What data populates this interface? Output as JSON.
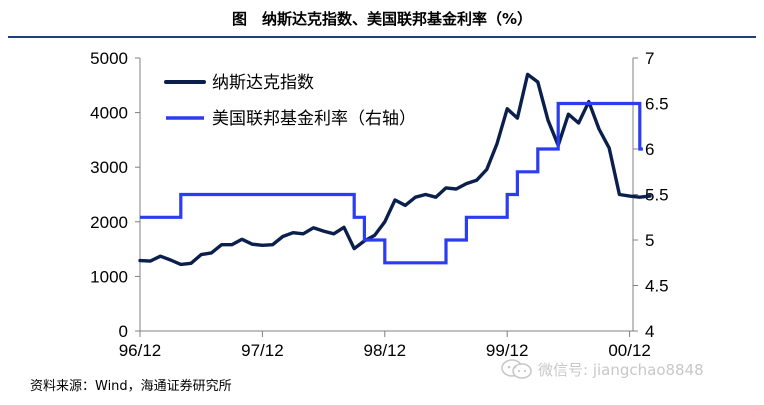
{
  "figure": {
    "title": "图　纳斯达克指数、美国联邦基金利率（%）",
    "source": "资料来源：Wind，海通证券研究所",
    "watermark": "微信号: jiangchao8848"
  },
  "chart_data": {
    "type": "line",
    "title": "纳斯达克指数、美国联邦基金利率（%）",
    "x_tick_labels": [
      "96/12",
      "97/12",
      "98/12",
      "99/12",
      "00/12"
    ],
    "y_left": {
      "ticks": [
        0,
        1000,
        2000,
        3000,
        4000,
        5000
      ],
      "range": [
        0,
        5000
      ]
    },
    "y_right": {
      "ticks": [
        "4",
        "4.5",
        "5",
        "5.5",
        "6",
        "6.5",
        "7"
      ],
      "range": [
        4,
        7
      ]
    },
    "grid": false,
    "legend_position": "top-left",
    "series": [
      {
        "name": "纳斯达克指数",
        "axis": "left",
        "color": "#0b1f4d",
        "x_months": [
          0,
          1,
          2,
          3,
          4,
          5,
          6,
          7,
          8,
          9,
          10,
          11,
          12,
          13,
          14,
          15,
          16,
          17,
          18,
          19,
          20,
          21,
          22,
          23,
          24,
          25,
          26,
          27,
          28,
          29,
          30,
          31,
          32,
          33,
          34,
          35,
          36,
          37,
          38,
          39,
          40,
          41,
          42,
          43,
          44,
          45,
          46,
          47,
          48,
          49,
          50
        ],
        "values": [
          1290,
          1280,
          1370,
          1300,
          1220,
          1240,
          1400,
          1430,
          1580,
          1580,
          1680,
          1590,
          1570,
          1580,
          1730,
          1800,
          1780,
          1890,
          1830,
          1780,
          1900,
          1510,
          1650,
          1750,
          2000,
          2400,
          2300,
          2450,
          2500,
          2450,
          2620,
          2600,
          2700,
          2760,
          2960,
          3430,
          4070,
          3900,
          4700,
          4560,
          3860,
          3400,
          3970,
          3810,
          4200,
          3700,
          3350,
          2500,
          2470,
          2450,
          2470
        ],
        "ylim": [
          0,
          5000
        ]
      },
      {
        "name": "美国联邦基金利率（右轴）",
        "axis": "right",
        "color": "#2b3df0",
        "x_months": [
          0,
          4,
          4,
          21,
          21,
          22,
          22,
          24,
          24,
          30,
          30,
          32,
          32,
          36,
          36,
          37,
          37,
          39,
          39,
          41,
          41,
          42,
          42,
          49,
          49,
          49.3
        ],
        "values": [
          5.25,
          5.25,
          5.5,
          5.5,
          5.25,
          5.25,
          5.0,
          5.0,
          4.75,
          4.75,
          5.0,
          5.0,
          5.25,
          5.25,
          5.5,
          5.5,
          5.75,
          5.75,
          6.0,
          6.0,
          6.5,
          6.5,
          6.5,
          6.5,
          6.0,
          6.0
        ],
        "ylim": [
          4,
          7
        ]
      }
    ]
  }
}
